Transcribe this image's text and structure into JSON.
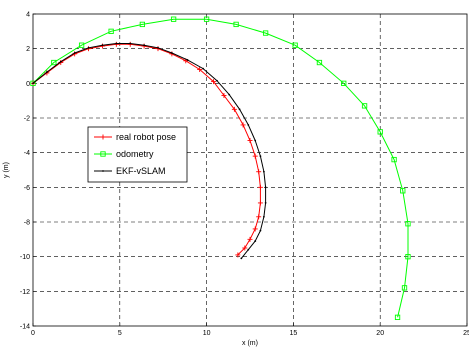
{
  "chart_data": {
    "type": "line",
    "xlabel": "x (m)",
    "ylabel": "y (m)",
    "xlim": [
      0,
      25
    ],
    "ylim": [
      -14,
      4
    ],
    "x_ticks": [
      0,
      5,
      10,
      15,
      20,
      25
    ],
    "y_ticks": [
      4,
      2,
      0,
      -2,
      -4,
      -6,
      -8,
      -10,
      -12,
      -14
    ],
    "grid": true,
    "legend_position": "middle-left",
    "series": [
      {
        "name": "real robot pose",
        "color": "#ff0000",
        "marker": "plus",
        "x": [
          0,
          0.8,
          1.6,
          2.4,
          3.2,
          4.0,
          4.8,
          5.6,
          6.4,
          7.2,
          8.0,
          8.8,
          9.6,
          10.4,
          11.0,
          11.6,
          12.1,
          12.5,
          12.8,
          13.0,
          13.1,
          13.1,
          13.0,
          12.8,
          12.5,
          12.2,
          11.8
        ],
        "y": [
          0,
          0.6,
          1.2,
          1.7,
          2.0,
          2.15,
          2.25,
          2.25,
          2.15,
          2.0,
          1.7,
          1.3,
          0.8,
          0.1,
          -0.7,
          -1.5,
          -2.4,
          -3.3,
          -4.2,
          -5.1,
          -6.0,
          -6.9,
          -7.7,
          -8.4,
          -9.0,
          -9.5,
          -9.9
        ]
      },
      {
        "name": "odometry",
        "color": "#00ff00",
        "marker": "square",
        "x": [
          0,
          1.2,
          2.8,
          4.5,
          6.3,
          8.1,
          10.0,
          11.7,
          13.4,
          15.1,
          16.5,
          17.9,
          19.1,
          20.0,
          20.8,
          21.3,
          21.6,
          21.6,
          21.4,
          21.0
        ],
        "y": [
          0,
          1.2,
          2.2,
          3.0,
          3.4,
          3.7,
          3.7,
          3.4,
          2.9,
          2.2,
          1.2,
          0.0,
          -1.3,
          -2.8,
          -4.4,
          -6.2,
          -8.1,
          -10.0,
          -11.8,
          -13.5
        ]
      },
      {
        "name": "EKF-vSLAM",
        "color": "#000000",
        "marker": "dot",
        "x": [
          0,
          0.8,
          1.6,
          2.4,
          3.2,
          4.0,
          4.8,
          5.6,
          6.4,
          7.2,
          8.0,
          8.9,
          9.8,
          10.6,
          11.3,
          11.9,
          12.4,
          12.8,
          13.1,
          13.3,
          13.4,
          13.4,
          13.3,
          13.1,
          12.8,
          12.4,
          12.0
        ],
        "y": [
          0,
          0.65,
          1.25,
          1.75,
          2.05,
          2.2,
          2.3,
          2.3,
          2.2,
          2.05,
          1.75,
          1.35,
          0.85,
          0.15,
          -0.65,
          -1.5,
          -2.4,
          -3.3,
          -4.2,
          -5.1,
          -6.0,
          -6.9,
          -7.7,
          -8.5,
          -9.1,
          -9.6,
          -10.1
        ]
      }
    ]
  }
}
